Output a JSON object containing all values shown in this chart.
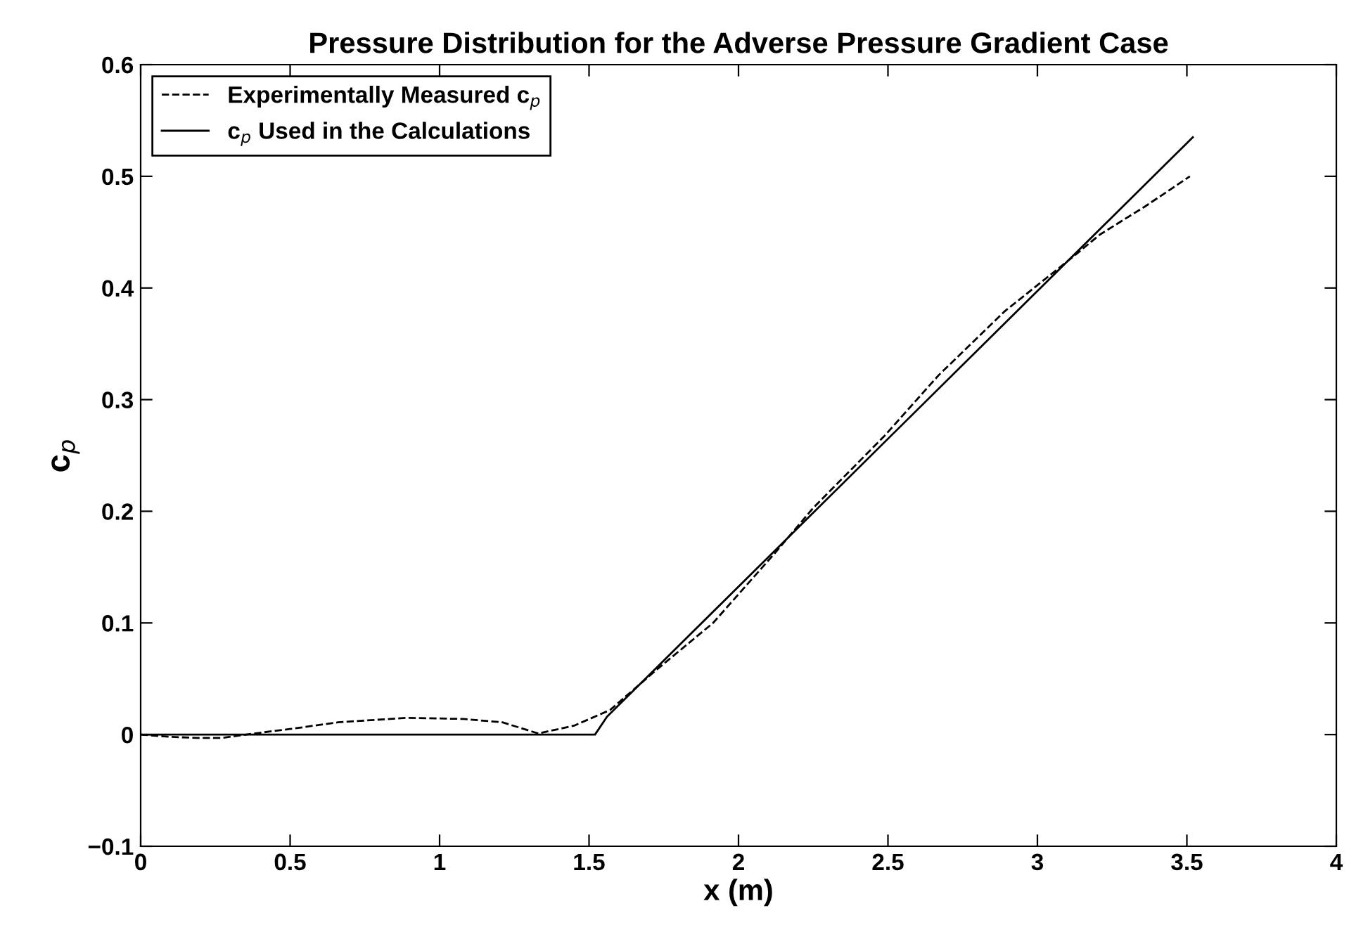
{
  "chart_data": {
    "type": "line",
    "title": "Pressure Distribution for the Adverse Pressure Gradient Case",
    "xlabel": "x (m)",
    "ylabel": "c$_{p}$",
    "series": [
      {
        "name": "Experimentally Measured c$_{p}$",
        "color": "#000000",
        "line_style": "dashed",
        "x": [
          0.0,
          0.1,
          0.19,
          0.27,
          0.38,
          0.5,
          0.66,
          0.89,
          1.08,
          1.21,
          1.33,
          1.45,
          1.57,
          1.73,
          1.915,
          2.12,
          2.25,
          2.49,
          2.67,
          2.89,
          3.11,
          3.21,
          3.36,
          3.51
        ],
        "values": [
          0.0,
          -0.002,
          -0.003,
          -0.003,
          0.001,
          0.005,
          0.011,
          0.015,
          0.014,
          0.011,
          0.001,
          0.008,
          0.022,
          0.059,
          0.1,
          0.162,
          0.203,
          0.268,
          0.322,
          0.379,
          0.426,
          0.448,
          0.473,
          0.5
        ]
      },
      {
        "name": "c$_{p}$ Used in the Calculations",
        "color": "#000000",
        "line_style": "solid",
        "x": [
          0.0,
          1.52,
          1.56,
          3.52
        ],
        "values": [
          0.0,
          0.0,
          0.016,
          0.535
        ]
      }
    ],
    "xlim": [
      0,
      4
    ],
    "ylim": [
      -0.1,
      0.6
    ],
    "xticks": [
      0,
      0.5,
      1,
      1.5,
      2,
      2.5,
      3,
      3.5,
      4
    ],
    "yticks": [
      {
        "value": -0.1,
        "label": "−0.1"
      },
      0,
      0.1,
      0.2,
      0.3,
      0.4,
      0.5,
      0.6
    ],
    "grid": false,
    "legend": "top left",
    "marker": "none"
  }
}
